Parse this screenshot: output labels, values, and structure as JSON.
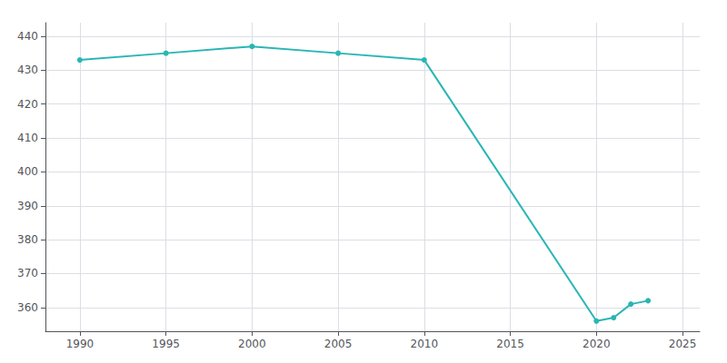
{
  "chart_data": {
    "type": "line",
    "x": [
      1990,
      1995,
      2000,
      2005,
      2010,
      2020,
      2021,
      2022,
      2023
    ],
    "values": [
      433,
      435,
      437,
      435,
      433,
      356,
      357,
      361,
      362
    ],
    "color": "#2ab5b5",
    "marker": "circle",
    "xlim": [
      1988,
      2026
    ],
    "ylim": [
      353,
      444
    ],
    "xticks": [
      1990,
      1995,
      2000,
      2005,
      2010,
      2015,
      2020,
      2025
    ],
    "yticks": [
      360,
      370,
      380,
      390,
      400,
      410,
      420,
      430,
      440
    ],
    "grid": true
  }
}
